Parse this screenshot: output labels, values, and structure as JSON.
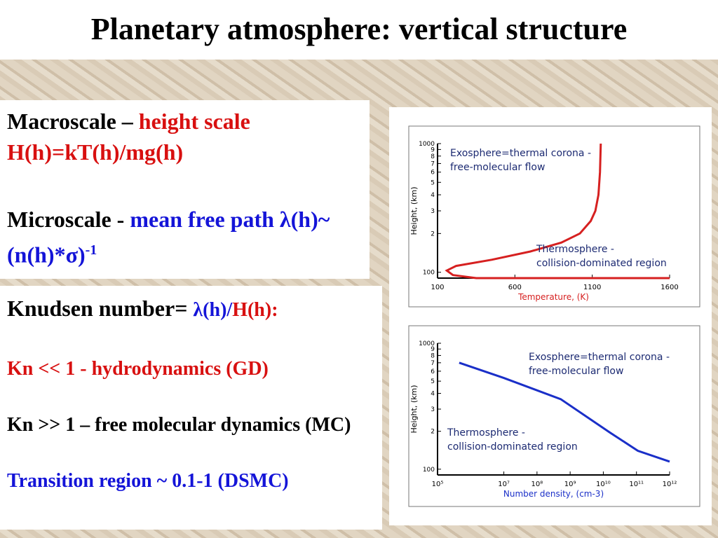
{
  "title": "Planetary atmosphere: vertical structure",
  "macroscale": {
    "label": "Macroscale – ",
    "term": "height scale",
    "formula": "H(h)=kT(h)/mg(h)"
  },
  "microscale": {
    "label": "Microscale - ",
    "term": "mean free path λ(h)~(n(h)*σ)",
    "exponent": "-1"
  },
  "knudsen": {
    "label": "Knudsen number= ",
    "lambda": "λ(h)/",
    "height": "H(h):",
    "small": "Kn << 1 - hydrodynamics (GD)",
    "large": "Kn >> 1 – free molecular dynamics (MC)",
    "transition": "Transition region ~ 0.1-1  (DSMC)"
  },
  "charts": [
    {
      "type": "line",
      "x_label": "Temperature, (K)",
      "y_label": "Height, (km)",
      "color": "#d62020",
      "x_label_color": "#d62020",
      "xlog": false,
      "ylog": true,
      "xlim": [
        100,
        1600
      ],
      "ylim": [
        90,
        1000
      ],
      "xticks": [
        100,
        600,
        1100,
        1600
      ],
      "yticks": [
        100,
        {
          "value": 200,
          "label": "2"
        },
        {
          "value": 300,
          "label": "3"
        },
        {
          "value": 400,
          "label": "4"
        },
        {
          "value": 500,
          "label": "5"
        },
        {
          "value": 600,
          "label": "6"
        },
        {
          "value": 700,
          "label": "7"
        },
        {
          "value": 800,
          "label": "8"
        },
        {
          "value": 900,
          "label": "9"
        },
        1000
      ],
      "x": [
        1600,
        350,
        200,
        160,
        220,
        450,
        700,
        900,
        1020,
        1090,
        1120,
        1140,
        1150,
        1155
      ],
      "y": [
        90,
        90,
        95,
        103,
        112,
        125,
        145,
        170,
        200,
        250,
        300,
        400,
        600,
        1000
      ],
      "annotations": [
        [
          "Exosphere=thermal corona -",
          "free-molecular flow"
        ],
        [
          "Thermosphere -",
          "collision-dominated region"
        ]
      ]
    },
    {
      "type": "line",
      "x_label": "Number density, (cm-3)",
      "y_label": "Height, (km)",
      "color": "#1a2fc8",
      "x_label_color": "#1a2fc8",
      "xlog": true,
      "ylog": true,
      "xlim": [
        100000,
        1000000000000
      ],
      "ylim": [
        90,
        1000
      ],
      "xticks": [
        {
          "value": 100000,
          "label": "10⁵"
        },
        {
          "value": 10000000,
          "label": "10⁷"
        },
        {
          "value": 100000000,
          "label": "10⁸"
        },
        {
          "value": 1000000000,
          "label": "10⁹"
        },
        {
          "value": 10000000000,
          "label": "10¹⁰"
        },
        {
          "value": 100000000000,
          "label": "10¹¹"
        },
        {
          "value": 1000000000000,
          "label": "10¹²"
        }
      ],
      "yticks": [
        100,
        {
          "value": 200,
          "label": "2"
        },
        {
          "value": 300,
          "label": "3"
        },
        {
          "value": 400,
          "label": "4"
        },
        {
          "value": 500,
          "label": "5"
        },
        {
          "value": 600,
          "label": "6"
        },
        {
          "value": 700,
          "label": "7"
        },
        {
          "value": 800,
          "label": "8"
        },
        {
          "value": 900,
          "label": "9"
        },
        1000
      ],
      "x": [
        450000,
        10000000,
        520000000,
        16000000000,
        110000000000,
        1000000000000
      ],
      "y": [
        700,
        530,
        360,
        195,
        140,
        115
      ],
      "annotations": [
        [
          "Exosphere=thermal corona -",
          "free-molecular flow"
        ],
        [
          "Thermosphere -",
          "collision-dominated region"
        ]
      ]
    }
  ]
}
